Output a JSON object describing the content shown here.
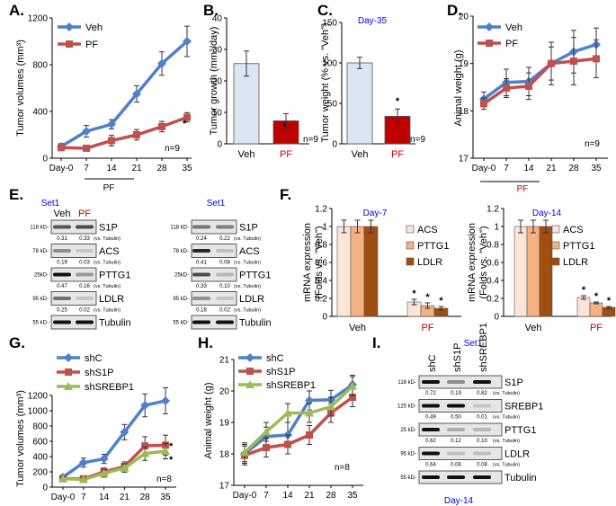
{
  "colors": {
    "veh_line": "#4e81c8",
    "pf_line": "#c0504d",
    "green_line": "#9bbb59",
    "veh_bar": "#dce6f2",
    "pf_bar": "#c00000",
    "label_blue": "#0000e6",
    "label_red": "#cc0000",
    "acs_bar": "#fbe5d6",
    "pttg1_bar": "#f4b183",
    "ldlr_bar": "#a04d10"
  },
  "panel_letters": {
    "A": "A.",
    "B": "B.",
    "C": "C.",
    "D": "D.",
    "E": "E.",
    "F": "F.",
    "G": "G.",
    "H": "H.",
    "I": "I."
  },
  "chart_data": [
    {
      "id": "A",
      "type": "line",
      "ylabel": "Tumor volumes (mm³)",
      "x": [
        "Day-0",
        "7",
        "14",
        "21",
        "28",
        "35"
      ],
      "ylim": [
        0,
        1200
      ],
      "yticks": [
        "0",
        "400",
        "800",
        "1200"
      ],
      "series": [
        {
          "name": "Veh",
          "values": [
            100,
            230,
            290,
            550,
            810,
            1000
          ],
          "errors": [
            25,
            50,
            40,
            70,
            100,
            130
          ]
        },
        {
          "name": "PF",
          "values": [
            90,
            85,
            150,
            200,
            270,
            350
          ],
          "errors": [
            20,
            20,
            45,
            45,
            45,
            40
          ]
        }
      ],
      "annotations": {
        "star": "*",
        "n": "n=9",
        "treatment": "PF"
      }
    },
    {
      "id": "B",
      "type": "bar",
      "ylabel_main": "Tumor growth (mm",
      "ylabel_sup": "3",
      "ylabel_tail": "/day)",
      "categories": [
        "Veh",
        "PF"
      ],
      "values": [
        25.5,
        7.3
      ],
      "errors": [
        4,
        2.3
      ],
      "ylim": [
        0,
        40
      ],
      "yticks": [
        "0",
        "10",
        "20",
        "30",
        "40"
      ],
      "annotations": {
        "star": "*",
        "n": "n=9"
      }
    },
    {
      "id": "C",
      "type": "bar",
      "ylabel": "Tumor weight (% vs. \"Veh\")",
      "subtitle": "Day-35",
      "categories": [
        "Veh",
        "PF"
      ],
      "values": [
        100,
        34
      ],
      "errors": [
        7,
        9
      ],
      "ylim": [
        0,
        150
      ],
      "yticks": [
        "0",
        "50",
        "100",
        "150"
      ],
      "annotations": {
        "star": "*",
        "n": "n=9"
      }
    },
    {
      "id": "D",
      "type": "line",
      "ylabel": "Animal weight (g)",
      "x": [
        "Day-0",
        "7",
        "14",
        "21",
        "28",
        "35"
      ],
      "ylim": [
        17,
        20
      ],
      "yticks": [
        "17",
        "18",
        "19",
        "20"
      ],
      "series": [
        {
          "name": "Veh",
          "values": [
            18.25,
            18.6,
            18.62,
            19.0,
            19.25,
            19.4
          ],
          "errors": [
            0.15,
            0.28,
            0.3,
            0.45,
            0.45,
            0.35
          ]
        },
        {
          "name": "PF",
          "values": [
            18.15,
            18.48,
            18.52,
            19.0,
            19.05,
            19.1
          ],
          "errors": [
            0.12,
            0.2,
            0.28,
            0.35,
            0.5,
            0.4
          ]
        }
      ],
      "annotations": {
        "n": "n=9",
        "treatment": "PF"
      }
    },
    {
      "id": "F1",
      "type": "bar",
      "ylabel": "mRNA expression",
      "ylabel2": "(Folds vs. \"Veh\")",
      "subtitle": "Day-7",
      "categories": [
        "Veh",
        "PF"
      ],
      "series": [
        {
          "name": "ACS",
          "values": [
            1.0,
            0.16
          ],
          "errors": [
            0.07,
            0.03
          ]
        },
        {
          "name": "PTTG1",
          "values": [
            1.0,
            0.12
          ],
          "errors": [
            0.07,
            0.03
          ]
        },
        {
          "name": "LDLR",
          "values": [
            1.0,
            0.09
          ],
          "errors": [
            0.07,
            0.02
          ]
        }
      ],
      "ylim": [
        0,
        1.2
      ],
      "yticks": [
        "0",
        "0.2",
        "0.4",
        "0.6",
        "0.8",
        "1",
        "1.2"
      ],
      "annotations": {
        "star": "*"
      }
    },
    {
      "id": "F2",
      "type": "bar",
      "ylabel": "mRNA expression",
      "ylabel2": "(Folds vs. \"Veh\")",
      "subtitle": "Day-14",
      "categories": [
        "Veh",
        "PF"
      ],
      "series": [
        {
          "name": "ACS",
          "values": [
            1.0,
            0.21
          ],
          "errors": [
            0.07,
            0.02
          ]
        },
        {
          "name": "PTTG1",
          "values": [
            1.0,
            0.15
          ],
          "errors": [
            0.07,
            0.01
          ]
        },
        {
          "name": "LDLR",
          "values": [
            1.0,
            0.1
          ],
          "errors": [
            0.07,
            0.01
          ]
        }
      ],
      "ylim": [
        0,
        1.2
      ],
      "yticks": [
        "0",
        "0.2",
        "0.4",
        "0.6",
        "0.8",
        "1",
        "1.2"
      ],
      "annotations": {
        "star": "*"
      }
    },
    {
      "id": "G",
      "type": "line",
      "ylabel": "Tumor volumes (mm³)",
      "x": [
        "Day-0",
        "7",
        "14",
        "21",
        "28",
        "35"
      ],
      "ylim": [
        0,
        1200
      ],
      "yticks": [
        "0",
        "200",
        "400",
        "600",
        "800",
        "1000",
        "1200"
      ],
      "series": [
        {
          "name": "shC",
          "values": [
            130,
            320,
            370,
            720,
            1070,
            1130
          ],
          "errors": [
            30,
            60,
            60,
            100,
            150,
            170
          ]
        },
        {
          "name": "shS1P",
          "values": [
            110,
            110,
            200,
            270,
            540,
            550
          ],
          "errors": [
            20,
            20,
            50,
            60,
            120,
            130
          ]
        },
        {
          "name": "shSREBP1",
          "values": [
            110,
            100,
            180,
            250,
            440,
            470
          ],
          "errors": [
            20,
            20,
            50,
            55,
            90,
            100
          ]
        }
      ],
      "annotations": {
        "star1": "*",
        "star2": "*",
        "n": "n=8"
      }
    },
    {
      "id": "H",
      "type": "line",
      "ylabel": "Animal weight (g)",
      "x": [
        "Day-0",
        "7",
        "14",
        "21",
        "28",
        "35"
      ],
      "ylim": [
        17,
        21
      ],
      "yticks": [
        "17",
        "18",
        "19",
        "20",
        "21"
      ],
      "series": [
        {
          "name": "shC",
          "values": [
            18.0,
            18.55,
            18.6,
            19.7,
            19.72,
            20.2
          ],
          "errors": [
            0.3,
            0.3,
            0.4,
            0.3,
            0.3,
            0.3
          ]
        },
        {
          "name": "shS1P",
          "values": [
            17.95,
            18.2,
            18.3,
            18.6,
            19.3,
            19.8
          ],
          "errors": [
            0.3,
            0.3,
            0.3,
            0.3,
            0.3,
            0.3
          ]
        },
        {
          "name": "shSREBP1",
          "values": [
            18.05,
            18.7,
            19.3,
            19.3,
            19.5,
            20.15
          ],
          "errors": [
            0.3,
            0.3,
            0.3,
            0.3,
            0.3,
            0.3
          ]
        }
      ],
      "annotations": {
        "n": "n=8"
      }
    }
  ],
  "blots": {
    "E1": {
      "set": "Set1",
      "lanes": [
        "Veh",
        "PF"
      ],
      "rows": [
        {
          "kd": "118 kD-",
          "name": "S1P",
          "quant": [
            "0.31",
            "0.33"
          ]
        },
        {
          "kd": "78 kD-",
          "name": "ACS",
          "quant": [
            "0.19",
            "0.03"
          ]
        },
        {
          "kd": "25kD-",
          "name": "PTTG1",
          "quant": [
            "0.47",
            "0.16"
          ]
        },
        {
          "kd": "95 kD-",
          "name": "LDLR",
          "quant": [
            "0.25",
            "0.02"
          ]
        },
        {
          "kd": "55 kD-",
          "name": "Tubulin",
          "quant": null
        }
      ],
      "quant_suffix": "(vs. Tubulin)"
    },
    "E2": {
      "set": "Set1",
      "rows": [
        {
          "kd": "118 kD-",
          "name": "S1P",
          "quant": [
            "0.24",
            "0.22"
          ]
        },
        {
          "kd": "78 kD-",
          "name": "ACS",
          "quant": [
            "0.41",
            "0.08"
          ]
        },
        {
          "kd": "25kD-",
          "name": "PTTG1",
          "quant": [
            "0.33",
            "0.10"
          ]
        },
        {
          "kd": "95 kD-",
          "name": "LDLR",
          "quant": [
            "0.18",
            "0.02"
          ]
        },
        {
          "kd": "55 kD-",
          "name": "Tubulin",
          "quant": null
        }
      ],
      "quant_suffix": "(vs. Tubulin)"
    },
    "I": {
      "set": "Set1",
      "lanes": [
        "shC",
        "shS1P",
        "shSREBP1"
      ],
      "rows": [
        {
          "kd": "118 kD-",
          "name": "S1P",
          "quant": [
            "0.72",
            "0.19",
            "0.82"
          ]
        },
        {
          "kd": "125 kD-",
          "name": "SREBP1",
          "quant": [
            "0.49",
            "0.50",
            "0.01"
          ]
        },
        {
          "kd": "25 kD-",
          "name": "PTTG1",
          "quant": [
            "0.62",
            "0.12",
            "0.10"
          ]
        },
        {
          "kd": "95 kD-",
          "name": "LDLR",
          "quant": [
            "0.64",
            "0.08",
            "0.08"
          ]
        },
        {
          "kd": "55 kD-",
          "name": "Tubulin",
          "quant": null
        }
      ],
      "quant_suffix": "(vs. Tubulin)",
      "footer": "Day-14"
    }
  }
}
